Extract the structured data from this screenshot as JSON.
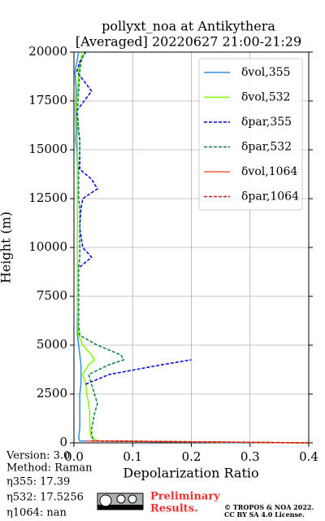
{
  "chart_data": {
    "type": "line",
    "title": "pollyxt_noa at Antikythera",
    "subtitle": "[Averaged] 20220627 21:00-21:29",
    "x_label": "Depolarization Ratio",
    "y_label": "Height (m)",
    "xlim": [
      0,
      0.4
    ],
    "ylim": [
      0,
      20000
    ],
    "xticks": [
      {
        "value": 0,
        "label": "0.0"
      },
      0.1,
      0.2,
      0.3,
      0.4
    ],
    "yticks": [
      0,
      2500,
      5000,
      7500,
      10000,
      12500,
      15000,
      17500,
      20000
    ],
    "grid": true,
    "legend": "upper right",
    "y": [
      0,
      100,
      250,
      500,
      750,
      1000,
      1500,
      2000,
      2500,
      3000,
      3500,
      4000,
      4250,
      4500,
      5000,
      5500,
      6000,
      7000,
      8000,
      9000,
      9500,
      10000,
      11000,
      12000,
      12500,
      13000,
      13500,
      14000,
      15000,
      15500,
      16000,
      17000,
      18000,
      19000,
      19500,
      20000
    ],
    "series": [
      {
        "name": "δvol,355",
        "color": "#2f8fdb",
        "style": "solid",
        "values": [
          0.3,
          0.01,
          0.008,
          0.009,
          0.01,
          0.01,
          0.01,
          0.01,
          0.01,
          0.012,
          0.012,
          0.012,
          0.011,
          0.01,
          0.008,
          0.006,
          0.006,
          0.006,
          0.006,
          0.006,
          0.006,
          0.006,
          0.006,
          0.006,
          0.006,
          0.006,
          0.006,
          0.006,
          0.005,
          0.003,
          0.004,
          0.003,
          0.004,
          0.002,
          0.005,
          0.008
        ]
      },
      {
        "name": "δvol,532",
        "color": "#7fff00",
        "style": "solid",
        "values": [
          0.4,
          0.04,
          0.03,
          0.028,
          0.027,
          0.027,
          0.027,
          0.025,
          0.022,
          0.02,
          0.015,
          0.025,
          0.035,
          0.03,
          0.015,
          0.008,
          0.007,
          0.006,
          0.006,
          0.006,
          0.006,
          0.006,
          0.006,
          0.006,
          0.006,
          0.006,
          0.006,
          0.006,
          0.006,
          0.006,
          0.006,
          0.004,
          0.006,
          0.008,
          0.01,
          0.015
        ]
      },
      {
        "name": "δpar,355",
        "color": "#0000e0",
        "style": "dashed",
        "values": [
          0.38,
          null,
          null,
          null,
          null,
          null,
          null,
          null,
          null,
          0.02,
          0.06,
          0.15,
          0.2,
          null,
          null,
          null,
          null,
          null,
          null,
          0.01,
          0.03,
          0.015,
          0.01,
          0.012,
          0.015,
          0.04,
          0.03,
          0.01,
          0.01,
          0.01,
          0.008,
          0.005,
          0.03,
          0.005,
          0.01,
          0.02
        ]
      },
      {
        "name": "δpar,532",
        "color": "#0a7f3a",
        "style": "dashed",
        "values": [
          0.38,
          0.035,
          0.032,
          0.03,
          0.03,
          0.032,
          0.035,
          0.04,
          0.035,
          0.03,
          0.025,
          0.06,
          0.085,
          0.08,
          0.04,
          0.01,
          0.008,
          0.008,
          0.008,
          0.008,
          0.01,
          0.01,
          0.01,
          0.01,
          0.008,
          0.008,
          0.008,
          0.008,
          0.01,
          0.01,
          0.008,
          0.006,
          0.008,
          0.01,
          0.012,
          0.018
        ]
      },
      {
        "name": "δvol,1064",
        "color": "#f4623a",
        "style": "solid",
        "values": [
          0.4,
          0.02,
          null,
          null,
          null,
          null,
          null,
          null,
          null,
          null,
          null,
          null,
          null,
          null,
          null,
          null,
          null,
          null,
          null,
          null,
          null,
          null,
          null,
          null,
          null,
          null,
          null,
          null,
          null,
          null,
          null,
          null,
          null,
          null,
          null,
          null
        ]
      },
      {
        "name": "δpar,1064",
        "color": "#d01010",
        "style": "dashed",
        "values": [
          0.4,
          0.03,
          null,
          null,
          null,
          null,
          null,
          null,
          null,
          null,
          null,
          null,
          null,
          null,
          null,
          null,
          null,
          null,
          null,
          null,
          null,
          null,
          null,
          null,
          null,
          null,
          null,
          null,
          null,
          null,
          null,
          null,
          null,
          null,
          null,
          null
        ]
      }
    ]
  },
  "info": {
    "version": "Version: 3.0",
    "method": "Method: Raman",
    "eta355": "η355:  17.39",
    "eta532": "η532: 17.5256",
    "eta1064": "η1064:    nan",
    "preliminary": "Preliminary",
    "results": "Results.",
    "copyright": "© TROPOS & NOA 2022.",
    "license": "CC BY SA 4.0 License."
  }
}
